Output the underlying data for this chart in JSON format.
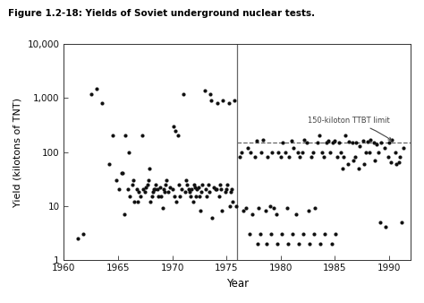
{
  "title": "Figure 1.2-18: Yields of Soviet underground nuclear tests.",
  "xlabel": "Year",
  "ylabel": "Yield (kilotons of TNT)",
  "xlim": [
    1960,
    1992
  ],
  "ylim_log": [
    1,
    10000
  ],
  "ttbt_year": 1976,
  "ttbt_value": 150,
  "ttbt_label": "150-kiloton TTBT limit",
  "xticks": [
    1960,
    1965,
    1970,
    1975,
    1980,
    1985,
    1990
  ],
  "yticks": [
    1,
    10,
    100,
    1000,
    10000
  ],
  "ytick_labels": [
    "1",
    "10",
    "100",
    "1,000",
    "10,000"
  ],
  "dot_color": "#111111",
  "line_color": "#666666",
  "dashed_color": "#666666",
  "background": "#ffffff",
  "pre_x": [
    1961.3,
    1961.8,
    1963.5,
    1964.2,
    1964.8,
    1965.1,
    1965.4,
    1965.7,
    1965.9,
    1966.1,
    1966.3,
    1966.5,
    1966.7,
    1966.9,
    1967.1,
    1967.3,
    1967.5,
    1967.6,
    1967.8,
    1968.0,
    1968.2,
    1968.4,
    1968.5,
    1968.7,
    1968.9,
    1969.0,
    1969.2,
    1969.4,
    1969.6,
    1969.8,
    1970.0,
    1970.1,
    1970.3,
    1970.5,
    1970.7,
    1970.9,
    1971.0,
    1971.2,
    1971.4,
    1971.5,
    1971.7,
    1971.9,
    1972.0,
    1972.2,
    1972.3,
    1972.5,
    1972.7,
    1972.8,
    1973.0,
    1973.1,
    1973.3,
    1973.5,
    1973.6,
    1973.8,
    1974.0,
    1974.2,
    1974.4,
    1974.5,
    1974.7,
    1974.9,
    1975.0,
    1975.2,
    1975.4,
    1975.5,
    1975.7,
    1975.9,
    1962.5,
    1963.0,
    1964.5,
    1965.3,
    1966.4,
    1967.2,
    1968.6,
    1969.3,
    1970.6,
    1971.3,
    1972.4,
    1973.2,
    1974.1,
    1975.1,
    1966.0,
    1967.9,
    1968.1,
    1969.5,
    1970.4,
    1971.6,
    1972.6,
    1973.7,
    1974.3,
    1975.3,
    1965.6,
    1966.8,
    1967.7,
    1968.3,
    1969.1,
    1970.2,
    1971.8,
    1972.1,
    1973.4,
    1974.6,
    1975.6
  ],
  "pre_y": [
    2.5,
    3.0,
    800,
    60,
    30,
    20,
    40,
    200,
    20,
    15,
    25,
    12,
    20,
    18,
    15,
    20,
    18,
    22,
    30,
    12,
    18,
    20,
    25,
    15,
    22,
    15,
    20,
    25,
    18,
    22,
    20,
    300,
    250,
    200,
    15,
    20,
    1200,
    18,
    25,
    20,
    15,
    12,
    25,
    15,
    20,
    15,
    18,
    25,
    1400,
    20,
    25,
    1200,
    900,
    22,
    20,
    800,
    25,
    20,
    900,
    18,
    20,
    800,
    18,
    20,
    900,
    10,
    1200,
    1500,
    200,
    40,
    30,
    200,
    20,
    18,
    25,
    30,
    22,
    15,
    20,
    25,
    100,
    50,
    15,
    30,
    12,
    18,
    8,
    6,
    15,
    10,
    7,
    12,
    25,
    20,
    9,
    15,
    20,
    22,
    18,
    8,
    12
  ],
  "post_x": [
    1976.2,
    1976.4,
    1976.6,
    1976.8,
    1977.0,
    1977.2,
    1977.4,
    1977.6,
    1977.8,
    1978.0,
    1978.2,
    1978.4,
    1978.6,
    1978.8,
    1979.0,
    1979.2,
    1979.4,
    1979.6,
    1979.8,
    1980.0,
    1980.2,
    1980.4,
    1980.6,
    1980.8,
    1981.0,
    1981.2,
    1981.4,
    1981.6,
    1981.8,
    1982.0,
    1982.2,
    1982.4,
    1982.6,
    1982.8,
    1983.0,
    1983.2,
    1983.4,
    1983.6,
    1983.8,
    1984.0,
    1984.2,
    1984.4,
    1984.6,
    1984.8,
    1985.0,
    1985.2,
    1985.4,
    1985.6,
    1985.8,
    1986.0,
    1986.3,
    1986.6,
    1986.9,
    1987.0,
    1987.3,
    1987.6,
    1987.9,
    1988.0,
    1988.3,
    1988.6,
    1988.9,
    1989.0,
    1989.3,
    1989.6,
    1989.9,
    1990.0,
    1990.3,
    1990.6,
    1990.9,
    1991.0,
    1991.3,
    1977.1,
    1977.9,
    1978.1,
    1978.7,
    1979.1,
    1979.7,
    1980.1,
    1980.7,
    1981.1,
    1981.7,
    1982.1,
    1982.7,
    1983.1,
    1983.7,
    1984.1,
    1984.7,
    1985.1,
    1985.7,
    1986.2,
    1986.7,
    1987.2,
    1987.7,
    1988.2,
    1988.7,
    1989.2,
    1989.7,
    1990.2,
    1990.7,
    1991.2
  ],
  "post_y": [
    80,
    100,
    8,
    9,
    120,
    100,
    7,
    80,
    160,
    9,
    100,
    170,
    8,
    80,
    10,
    100,
    9,
    7,
    100,
    80,
    150,
    100,
    9,
    80,
    160,
    120,
    7,
    100,
    80,
    100,
    170,
    150,
    8,
    80,
    100,
    9,
    150,
    200,
    100,
    80,
    150,
    160,
    100,
    150,
    160,
    80,
    150,
    100,
    80,
    200,
    155,
    150,
    80,
    150,
    130,
    160,
    100,
    155,
    165,
    150,
    140,
    100,
    150,
    120,
    80,
    150,
    170,
    100,
    65,
    80,
    120,
    3,
    2,
    3,
    2,
    3,
    2,
    3,
    2,
    3,
    2,
    3,
    2,
    3,
    2,
    3,
    2,
    3,
    50,
    60,
    70,
    50,
    60,
    100,
    70,
    5,
    4,
    65,
    60,
    5
  ]
}
